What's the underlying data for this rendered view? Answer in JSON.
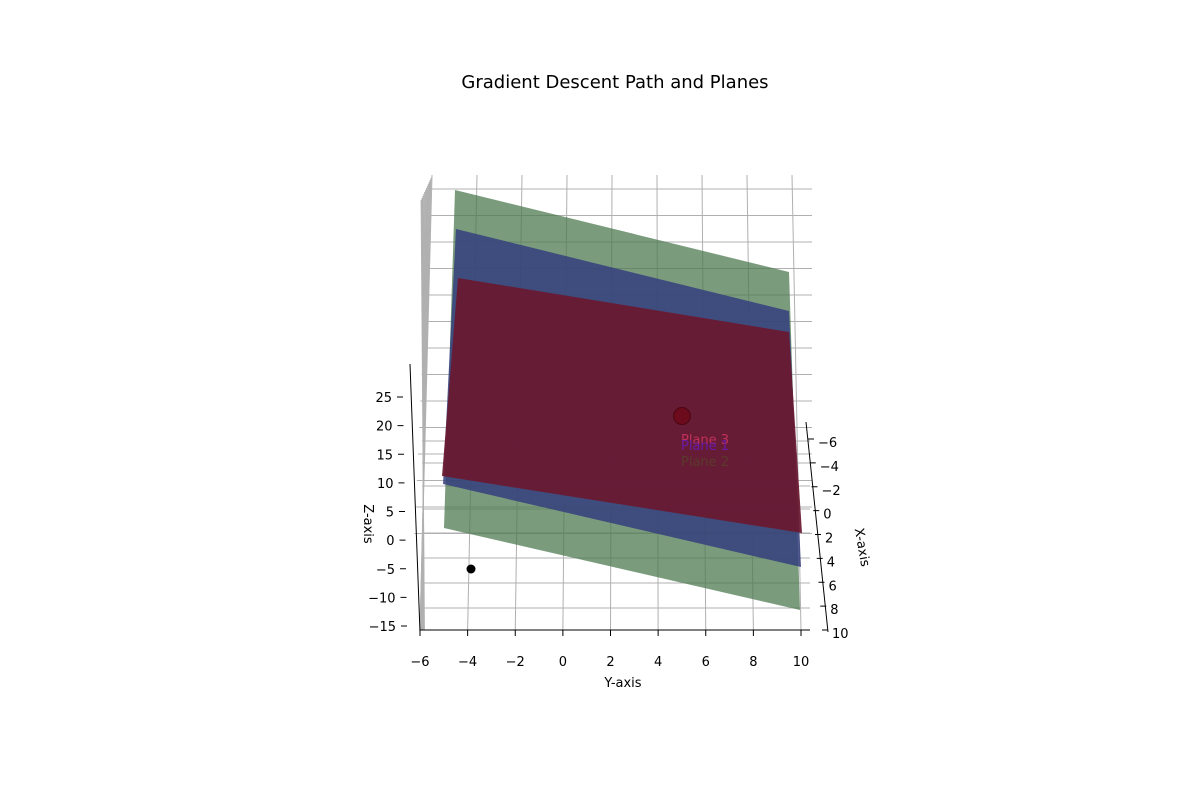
{
  "chart_data": {
    "type": "3d-surface",
    "title": "Gradient Descent Path and Planes",
    "xlabel": "X-axis",
    "ylabel": "Y-axis",
    "zlabel": "Z-axis",
    "x_ticks": [
      -6,
      -4,
      -2,
      0,
      2,
      4,
      6,
      8,
      10
    ],
    "y_ticks": [
      -6,
      -4,
      -2,
      0,
      2,
      4,
      6,
      8,
      10
    ],
    "z_ticks": [
      -15,
      -10,
      -5,
      0,
      5,
      10,
      15,
      20,
      25
    ],
    "xlim": [
      -6,
      10
    ],
    "ylim": [
      -6,
      10
    ],
    "zlim": [
      -15,
      37
    ],
    "grid": true,
    "planes": [
      {
        "name": "Plane 1",
        "color": "#3b4a86",
        "annotation_color": "#6a1aa8"
      },
      {
        "name": "Plane 2",
        "color": "#4f7a52",
        "annotation_color": "#5a3a2a"
      },
      {
        "name": "Plane 3",
        "color": "#7a1a30",
        "annotation_color": "#c0305a"
      }
    ],
    "points": [
      {
        "role": "start",
        "y": -4,
        "z": -5,
        "color": "#000000"
      },
      {
        "role": "end",
        "y": 5,
        "z": 21,
        "color": "#6b0a1a"
      }
    ]
  }
}
